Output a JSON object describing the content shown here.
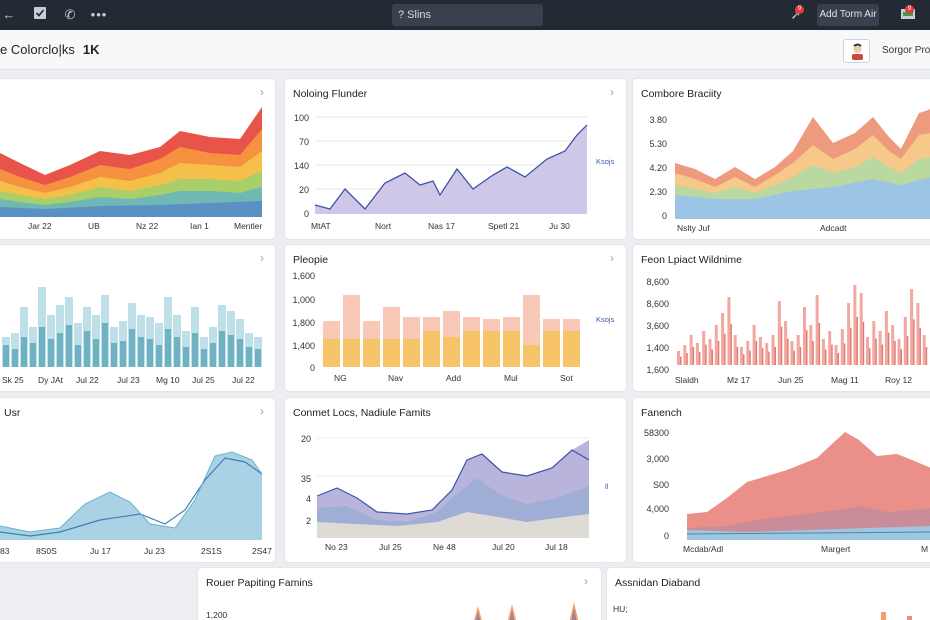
{
  "topbar": {
    "back_icon": "arrow-left-icon",
    "search_label": "? Slins",
    "add_button_label": "Add Torm Air",
    "alert_badge": "9",
    "inbox_badge": "9"
  },
  "header": {
    "title": "e Colorclo|ks",
    "count": "1K",
    "profile_label": "Sorgor Prom"
  },
  "cards": [
    {
      "title": "",
      "x_labels": [
        "Jar 22",
        "UB",
        "Nz 22",
        "Ian 1",
        "Mentler"
      ]
    },
    {
      "title": "Noloing Flunder",
      "y_labels": [
        "100",
        "70",
        "140",
        "20",
        "0"
      ],
      "x_labels": [
        "MtAT",
        "Nort",
        "Nas 17",
        "Spetl 21",
        "Ju 30"
      ],
      "side_label": "Ksojs"
    },
    {
      "title": "Combore Braciity",
      "y_labels": [
        "3.80",
        "5.30",
        "4.20",
        "2.30",
        "0"
      ],
      "x_labels": [
        "Nslty Juf",
        "Adcadt"
      ]
    },
    {
      "title": "",
      "x_labels": [
        "Sk 25",
        "Dy JAt",
        "Jul 22",
        "Jul 23",
        "Mg 10",
        "Jul 25",
        "Jul 22"
      ]
    },
    {
      "title": "Pleopie",
      "y_labels": [
        "1,600",
        "1,000",
        "1,800",
        "1,400",
        "0"
      ],
      "x_labels": [
        "NG",
        "Nav",
        "Add",
        "Mul",
        "Sot"
      ],
      "side_label": "Ksojs"
    },
    {
      "title": "Feon Lpiact Wildnime",
      "y_labels": [
        "8,600",
        "8,600",
        "3,600",
        "1,400",
        "1,600"
      ],
      "x_labels": [
        "Slaldh",
        "Mz 17",
        "Jun 25",
        "Mag 11",
        "Roy 12"
      ]
    },
    {
      "title": "Usr",
      "x_labels": [
        "83",
        "8S0S",
        "Ju 17",
        "Ju 23",
        "2S1S",
        "2S47"
      ]
    },
    {
      "title": "Conmet Locs, Nadiule Famits",
      "y_labels": [
        "20",
        "35",
        "4",
        "2"
      ],
      "x_labels": [
        "No 23",
        "Jul 25",
        "Ne 48",
        "Jul 20",
        "Jul 18"
      ],
      "side_label": "ll"
    },
    {
      "title": "Fanench",
      "y_labels": [
        "58300",
        "3,000",
        "S00",
        "4,000",
        "0"
      ],
      "x_labels": [
        "Mcdab/Adl",
        "Margert",
        "M"
      ]
    },
    {
      "title": "Rouer Papiting Famins",
      "y_labels": [
        "1,200"
      ]
    },
    {
      "title": "Assnidan Diaband",
      "y_labels": [
        "HU;"
      ]
    }
  ],
  "colors": {
    "topbar": "#242a33",
    "stack": [
      "#e8534a",
      "#f6923f",
      "#f5c04a",
      "#a8cf6a",
      "#6fb8b4",
      "#5c8fc4"
    ],
    "purple_line": "#3f54a8",
    "purple_fill": "#c9c1e4",
    "teal": "#7bbecb",
    "orange_bar": "#f7c46a",
    "pink_bar": "#f2a8a0",
    "red_area": "#ea8f86",
    "blue_area": "#9cc7de"
  }
}
